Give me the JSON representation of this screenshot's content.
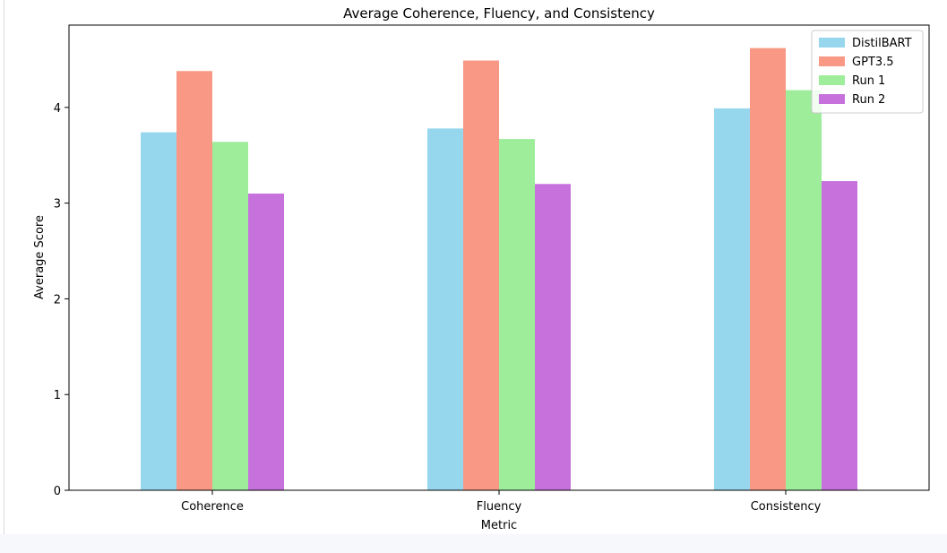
{
  "chart_data": {
    "type": "bar",
    "title": "Average Coherence, Fluency, and Consistency",
    "xlabel": "Metric",
    "ylabel": "Average Score",
    "categories": [
      "Coherence",
      "Fluency",
      "Consistency"
    ],
    "ylim": [
      0,
      4.86
    ],
    "yticks": [
      0,
      1,
      2,
      3,
      4
    ],
    "grid": false,
    "legend_position": "upper-right",
    "series": [
      {
        "name": "DistilBART",
        "color": "#97d7ee",
        "values": [
          3.74,
          3.78,
          3.99
        ]
      },
      {
        "name": "GPT3.5",
        "color": "#f99985",
        "values": [
          4.38,
          4.49,
          4.62
        ]
      },
      {
        "name": "Run 1",
        "color": "#9ded9b",
        "values": [
          3.64,
          3.67,
          4.18
        ]
      },
      {
        "name": "Run 2",
        "color": "#c772dc",
        "values": [
          3.1,
          3.2,
          3.23
        ]
      }
    ]
  }
}
